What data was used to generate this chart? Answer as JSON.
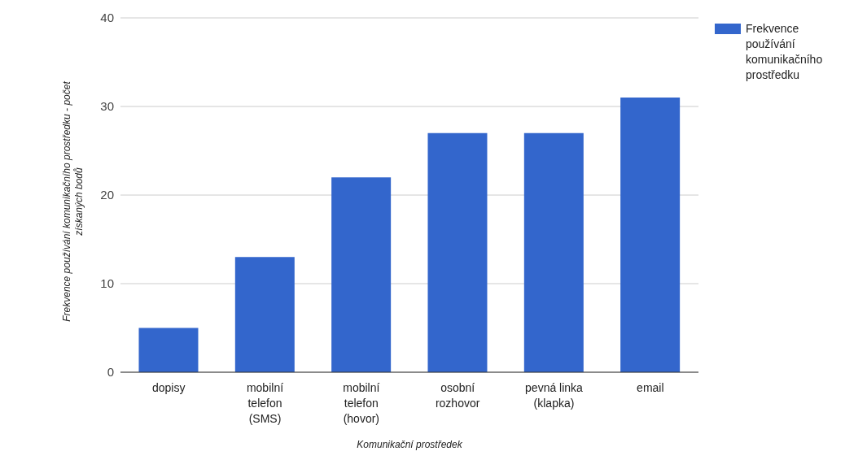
{
  "chart_data": {
    "type": "bar",
    "xlabel": "Komunikační prostředek",
    "ylabel": "Frekvence používání komunikačního prostředku - počet získaných bodů",
    "categories": [
      "dopisy",
      "mobilní telefon (SMS)",
      "mobilní telefon (hovor)",
      "osobní rozhovor",
      "pevná linka (klapka)",
      "email"
    ],
    "series": [
      {
        "name": "Frekvence používání komunikačního prostředku",
        "color": "#3366cc",
        "values": [
          5,
          13,
          22,
          27,
          27,
          31
        ]
      }
    ],
    "ylim": [
      0,
      40
    ],
    "yticks": [
      0,
      10,
      20,
      30,
      40
    ],
    "grid": "y",
    "legend": "top right"
  }
}
